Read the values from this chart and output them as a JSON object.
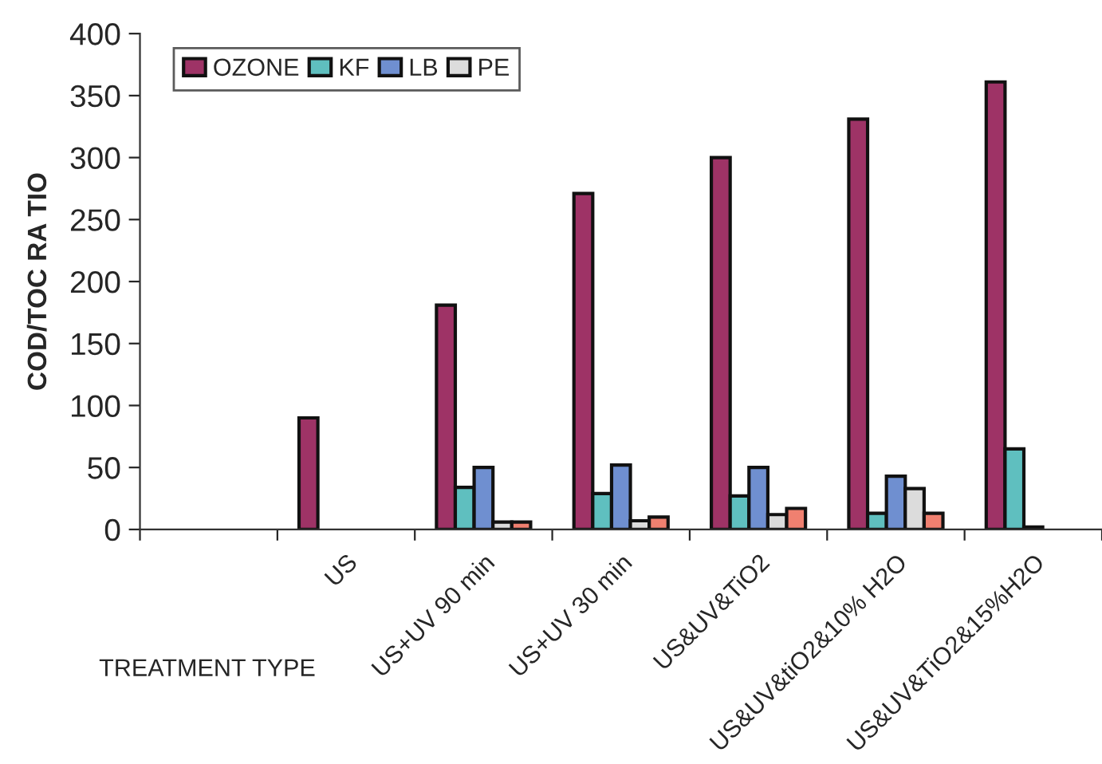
{
  "chart_data": {
    "type": "bar",
    "xlabel": "TREATMENT TYPE",
    "ylabel": "COD/TOC RA TIO",
    "categories": [
      null,
      "US",
      "US+UV 90 min",
      "US+UV 30 min",
      "US&UV&TiO2",
      "US&UV&tiO2&10% H2O",
      "US&UV&TiO2&15%H2O"
    ],
    "series": [
      {
        "name": "OZONE",
        "color": "#9e3366",
        "values": [
          null,
          90,
          181,
          271,
          300,
          331,
          361
        ]
      },
      {
        "name": "KF",
        "color": "#5fbfbf",
        "values": [
          null,
          null,
          34,
          29,
          27,
          13,
          65
        ]
      },
      {
        "name": "LB",
        "color": "#6f8fd0",
        "values": [
          null,
          null,
          50,
          52,
          50,
          43,
          2
        ]
      },
      {
        "name": "PE",
        "color": "#dcdcdc",
        "values": [
          null,
          null,
          6,
          7,
          12,
          33,
          null
        ]
      },
      {
        "color": "#f08070",
        "values": [
          null,
          null,
          6,
          10,
          17,
          13,
          null
        ]
      }
    ],
    "ylim": [
      0,
      400
    ],
    "yticks": [
      0,
      50,
      100,
      150,
      200,
      250,
      300,
      350,
      400
    ],
    "grid": false,
    "legend": "top left"
  }
}
